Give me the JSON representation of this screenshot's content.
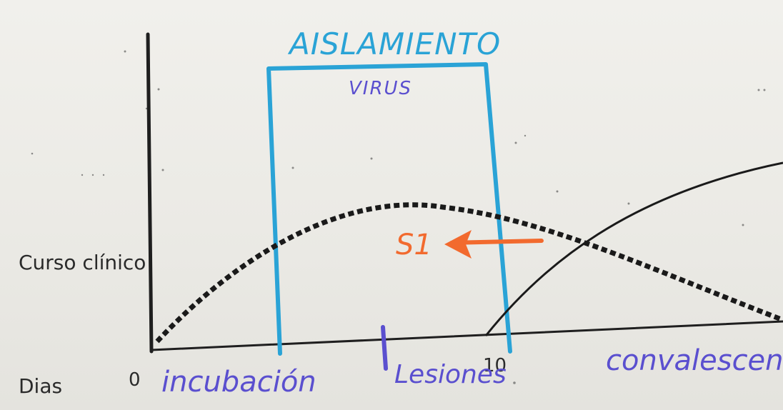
{
  "printed": {
    "y_label": "Curso clínico",
    "x_label": "Dias",
    "tick_zero": "0",
    "tick_ten": "10"
  },
  "handwritten": {
    "isolation_title": "AISLAMIENTO",
    "isolation_subtitle": "VIRUS",
    "stage_incubation": "incubación",
    "stage_lesions": "Lesiones",
    "stage_convalescence": "convalescen",
    "symptom_mark": "S1"
  },
  "colors": {
    "axes": "#1f1f1f",
    "isolation_box": "#2aa3d6",
    "handwriting_purple": "#5a4fcf",
    "symptom_orange": "#f26a2e",
    "curves": "#1a1a1a"
  }
}
